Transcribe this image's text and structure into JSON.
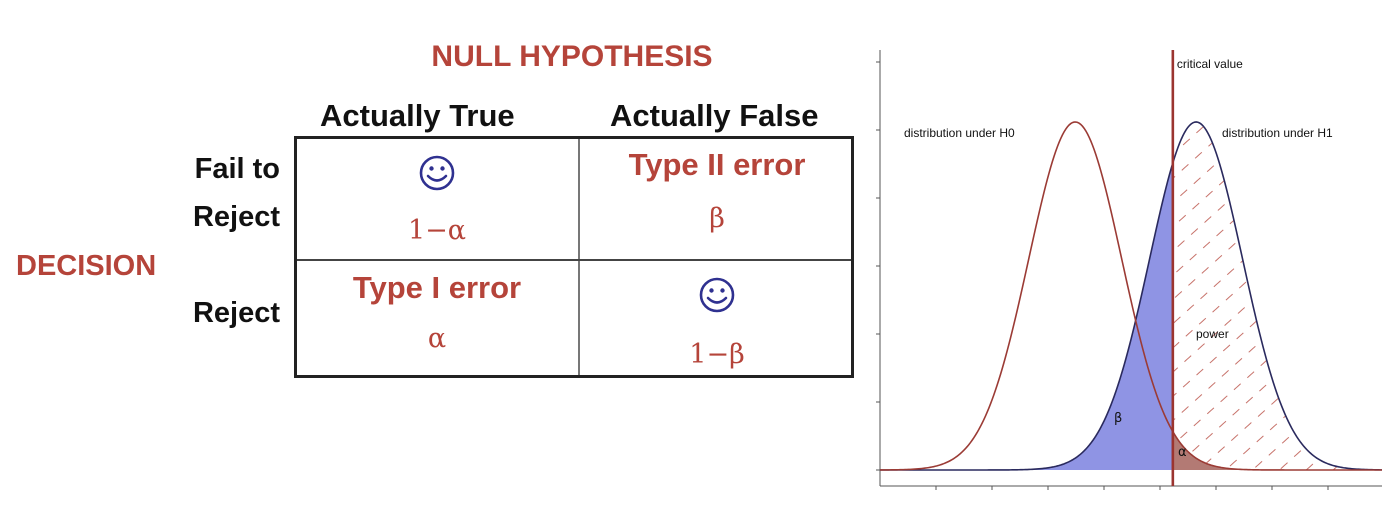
{
  "table": {
    "title": "NULL HYPOTHESIS",
    "columns": [
      "Actually True",
      "Actually False"
    ],
    "rows": {
      "fail_line1": "Fail to",
      "fail_line2": "Reject",
      "reject": "Reject"
    },
    "decision_label": "DECISION",
    "cells": {
      "fail_true_value": "1−α",
      "fail_false_error": "Type II error",
      "fail_false_value": "β",
      "reject_true_error": "Type I error",
      "reject_true_value": "α",
      "reject_false_value": "1−β"
    },
    "icons": [
      "smiley-icon",
      "smiley-icon"
    ]
  },
  "chart_data": {
    "type": "area",
    "title": "",
    "xlabel": "",
    "ylabel": "",
    "series": [
      {
        "name": "distribution under H0",
        "mean": 0,
        "sd": 1
      },
      {
        "name": "distribution under H1",
        "mean": 2.6,
        "sd": 1
      }
    ],
    "critical_value": 2.1,
    "xlim": [
      -4.2,
      6.6
    ],
    "ylim": [
      0,
      0.47
    ],
    "annotations": {
      "critical_label": "critical value",
      "h0_label": "distribution under H0",
      "h1_label": "distribution under H1",
      "power_label": "power",
      "beta_label": "β",
      "alpha_label": "α"
    },
    "colors": {
      "h0_curve": "#9b3b35",
      "h1_curve": "#2a2a5e",
      "beta_fill": "#8f94e4",
      "alpha_fill": "#b37a74",
      "critical_line": "#9b3430",
      "hatch": "#c7726a"
    }
  }
}
